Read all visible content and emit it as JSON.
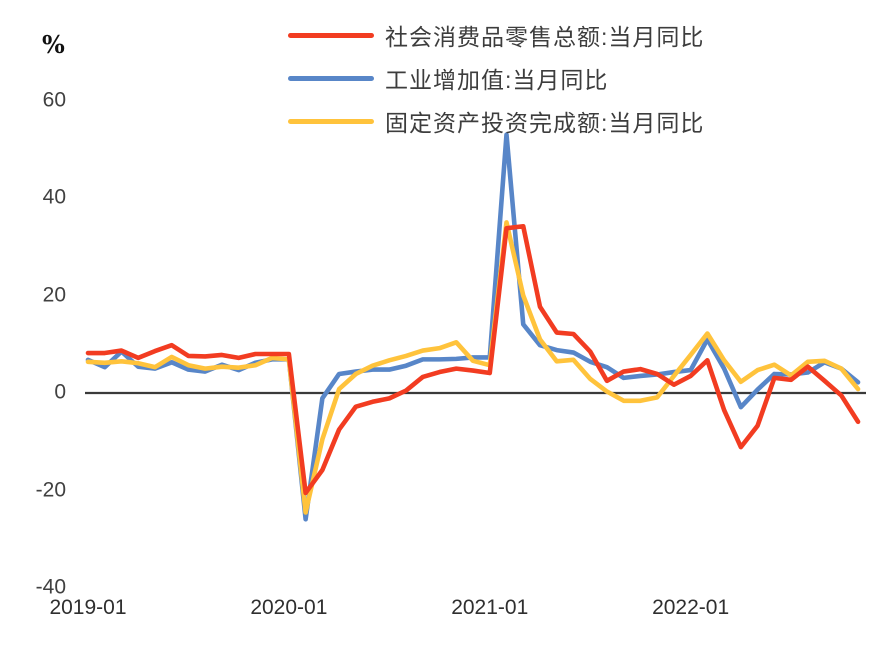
{
  "chart_data": {
    "type": "line",
    "title": "",
    "ylabel": "%",
    "xlabel": "",
    "grid": false,
    "legend_position": "top-center",
    "zero_line": true,
    "ylim": [
      -40,
      60
    ],
    "yticks": [
      60,
      40,
      20,
      0,
      -20,
      -40
    ],
    "xticks": [
      "2019-01",
      "2020-01",
      "2021-01",
      "2022-01"
    ],
    "x": [
      "2019-01",
      "2019-02",
      "2019-03",
      "2019-04",
      "2019-05",
      "2019-06",
      "2019-07",
      "2019-08",
      "2019-09",
      "2019-10",
      "2019-11",
      "2019-12",
      "2020-01",
      "2020-02",
      "2020-03",
      "2020-04",
      "2020-05",
      "2020-06",
      "2020-07",
      "2020-08",
      "2020-09",
      "2020-10",
      "2020-11",
      "2020-12",
      "2021-01",
      "2021-02",
      "2021-03",
      "2021-04",
      "2021-05",
      "2021-06",
      "2021-07",
      "2021-08",
      "2021-09",
      "2021-10",
      "2021-11",
      "2021-12",
      "2022-01",
      "2022-02",
      "2022-03",
      "2022-04",
      "2022-05",
      "2022-06",
      "2022-07",
      "2022-08",
      "2022-09",
      "2022-10",
      "2022-11"
    ],
    "series": [
      {
        "name": "社会消费品零售总额:当月同比",
        "color": "#F23C21",
        "values": [
          8.2,
          8.2,
          8.7,
          7.2,
          8.6,
          9.8,
          7.6,
          7.5,
          7.8,
          7.2,
          8.0,
          8.0,
          8.0,
          -20.5,
          -15.8,
          -7.5,
          -2.8,
          -1.8,
          -1.1,
          0.5,
          3.3,
          4.3,
          5.0,
          4.6,
          4.1,
          33.8,
          34.2,
          17.7,
          12.4,
          12.1,
          8.5,
          2.5,
          4.4,
          4.9,
          3.9,
          1.7,
          3.5,
          6.7,
          -3.5,
          -11.1,
          -6.7,
          3.1,
          2.7,
          5.4,
          2.5,
          -0.5,
          -5.9
        ]
      },
      {
        "name": "工业增加值:当月同比",
        "color": "#5886C8",
        "values": [
          6.8,
          5.3,
          8.5,
          5.4,
          5.0,
          6.3,
          4.8,
          4.4,
          5.8,
          4.7,
          6.2,
          6.9,
          6.9,
          -25.9,
          -1.1,
          3.9,
          4.4,
          4.8,
          4.8,
          5.6,
          6.9,
          6.9,
          7.0,
          7.3,
          7.3,
          53.0,
          14.1,
          9.8,
          8.8,
          8.3,
          6.4,
          5.3,
          3.1,
          3.5,
          3.8,
          4.3,
          4.7,
          11.0,
          5.0,
          -2.9,
          0.7,
          3.9,
          3.8,
          4.2,
          6.3,
          5.0,
          2.2
        ]
      },
      {
        "name": "固定资产投资完成额:当月同比",
        "color": "#FFC33C",
        "values": [
          6.4,
          6.2,
          6.5,
          6.1,
          5.3,
          7.4,
          5.7,
          5.0,
          5.4,
          5.2,
          5.7,
          7.2,
          6.9,
          -24.5,
          -9.5,
          0.8,
          3.9,
          5.6,
          6.7,
          7.6,
          8.7,
          9.2,
          10.4,
          6.6,
          5.7,
          35.0,
          20.0,
          11.0,
          6.5,
          6.8,
          2.9,
          0.3,
          -1.6,
          -1.6,
          -0.9,
          3.5,
          7.8,
          12.2,
          6.7,
          2.3,
          4.7,
          5.8,
          3.6,
          6.4,
          6.6,
          5.0,
          0.8
        ]
      }
    ]
  }
}
